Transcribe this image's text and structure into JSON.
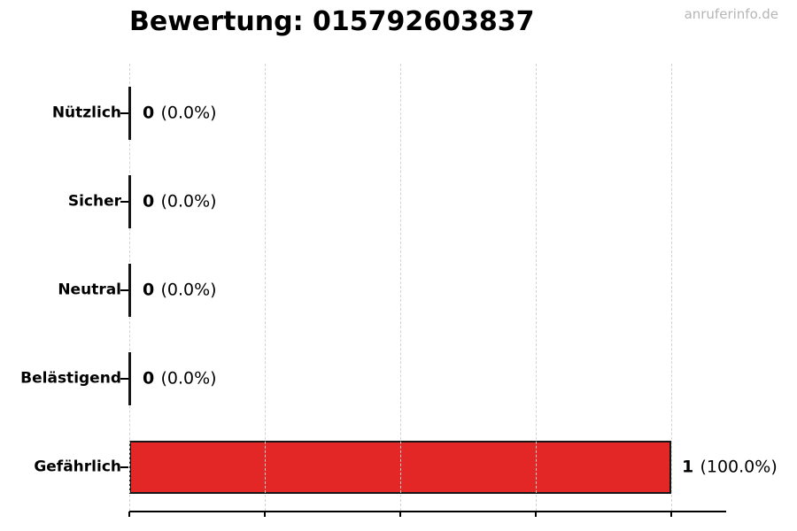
{
  "watermark": "anruferinfo.de",
  "colors": {
    "bar_fill": "#e32727",
    "bar_edge": "#161616",
    "grid": "#d2d2d2",
    "axis": "#000000",
    "text": "#000000",
    "watermark_text": "#b6b6b6"
  },
  "chart_data": {
    "type": "bar",
    "orientation": "horizontal",
    "title": "Bewertung: 015792603837",
    "categories": [
      "Nützlich",
      "Sicher",
      "Neutral",
      "Belästigend",
      "Gefährlich"
    ],
    "values": [
      0,
      0,
      0,
      0,
      1
    ],
    "value_labels": [
      "0",
      "0",
      "0",
      "0",
      "1"
    ],
    "pct_labels": [
      "(0.0%)",
      "(0.0%)",
      "(0.0%)",
      "(0.0%)",
      "(100.0%)"
    ],
    "total": 1,
    "xlim": [
      0,
      1.1
    ],
    "x_ticks": [
      0,
      0.25,
      0.5,
      0.75,
      1.0
    ],
    "x_tick_labels": [],
    "grid": true,
    "legend": false
  }
}
